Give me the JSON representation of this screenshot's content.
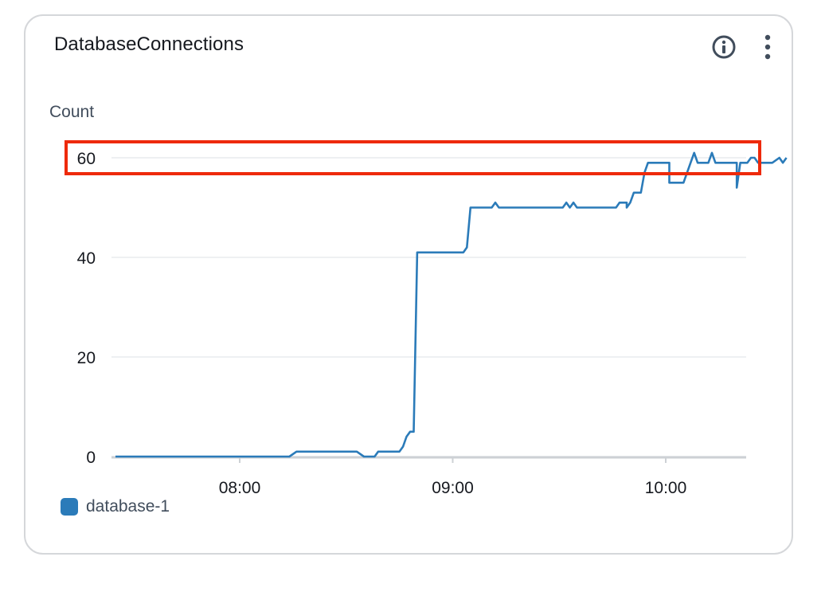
{
  "widget": {
    "title": "DatabaseConnections",
    "info_icon": "info-circle-icon",
    "more_icon": "vertical-ellipsis-icon"
  },
  "colors": {
    "series": "#2b7bb9",
    "grid": "#e9ebed",
    "axis": "#cdd1d5",
    "highlight": "#ee2a0b",
    "text": "#16191f",
    "muted": "#414d5c"
  },
  "chart_data": {
    "type": "line",
    "title": "DatabaseConnections",
    "ylabel": "Count",
    "xlabel": "",
    "ylim": [
      0,
      64
    ],
    "yticks": [
      0,
      20,
      40,
      60
    ],
    "ytick_labels": [
      "0",
      "20",
      "40",
      "60"
    ],
    "xlim_minutes": [
      445,
      638
    ],
    "xticks_minutes": [
      480,
      540,
      600
    ],
    "xtick_labels": [
      "08:00",
      "09:00",
      "10:00"
    ],
    "grid": true,
    "legend_position": "bottom-left",
    "highlight": {
      "y_value": 60,
      "label": "60"
    },
    "series": [
      {
        "name": "database-1",
        "points": [
          [
            445,
            0
          ],
          [
            494,
            0
          ],
          [
            496,
            1
          ],
          [
            506,
            1
          ],
          [
            511,
            1
          ],
          [
            506,
            1
          ],
          [
            513,
            1
          ],
          [
            515,
            0
          ],
          [
            518,
            0
          ],
          [
            519,
            1
          ],
          [
            523,
            1
          ],
          [
            525,
            1
          ],
          [
            526,
            2
          ],
          [
            527,
            4
          ],
          [
            528,
            5
          ],
          [
            529,
            5
          ],
          [
            530,
            41
          ],
          [
            532,
            41
          ],
          [
            543,
            41
          ],
          [
            544,
            42
          ],
          [
            545,
            50
          ],
          [
            547,
            50
          ],
          [
            548,
            50
          ],
          [
            551,
            50
          ],
          [
            552,
            51
          ],
          [
            553,
            50
          ],
          [
            555,
            50
          ],
          [
            570,
            50
          ],
          [
            571,
            50
          ],
          [
            572,
            51
          ],
          [
            573,
            50
          ],
          [
            574,
            51
          ],
          [
            575,
            50
          ],
          [
            579,
            50
          ],
          [
            586,
            50
          ],
          [
            587,
            51
          ],
          [
            589,
            51
          ],
          [
            589,
            50
          ],
          [
            590,
            51
          ],
          [
            591,
            53
          ],
          [
            593,
            53
          ],
          [
            594,
            57
          ],
          [
            595,
            59
          ],
          [
            596,
            59
          ],
          [
            598,
            59
          ],
          [
            601,
            59
          ],
          [
            601,
            55
          ],
          [
            605,
            55
          ],
          [
            607,
            59
          ],
          [
            608,
            61
          ],
          [
            609,
            59
          ],
          [
            612,
            59
          ],
          [
            613,
            61
          ],
          [
            614,
            59
          ],
          [
            617,
            59
          ],
          [
            620,
            59
          ],
          [
            620,
            54
          ],
          [
            621,
            59
          ],
          [
            623,
            59
          ],
          [
            624,
            60
          ],
          [
            625,
            60
          ],
          [
            626,
            59
          ],
          [
            630,
            59
          ],
          [
            632,
            60
          ],
          [
            633,
            59
          ],
          [
            634,
            60
          ]
        ]
      }
    ]
  }
}
